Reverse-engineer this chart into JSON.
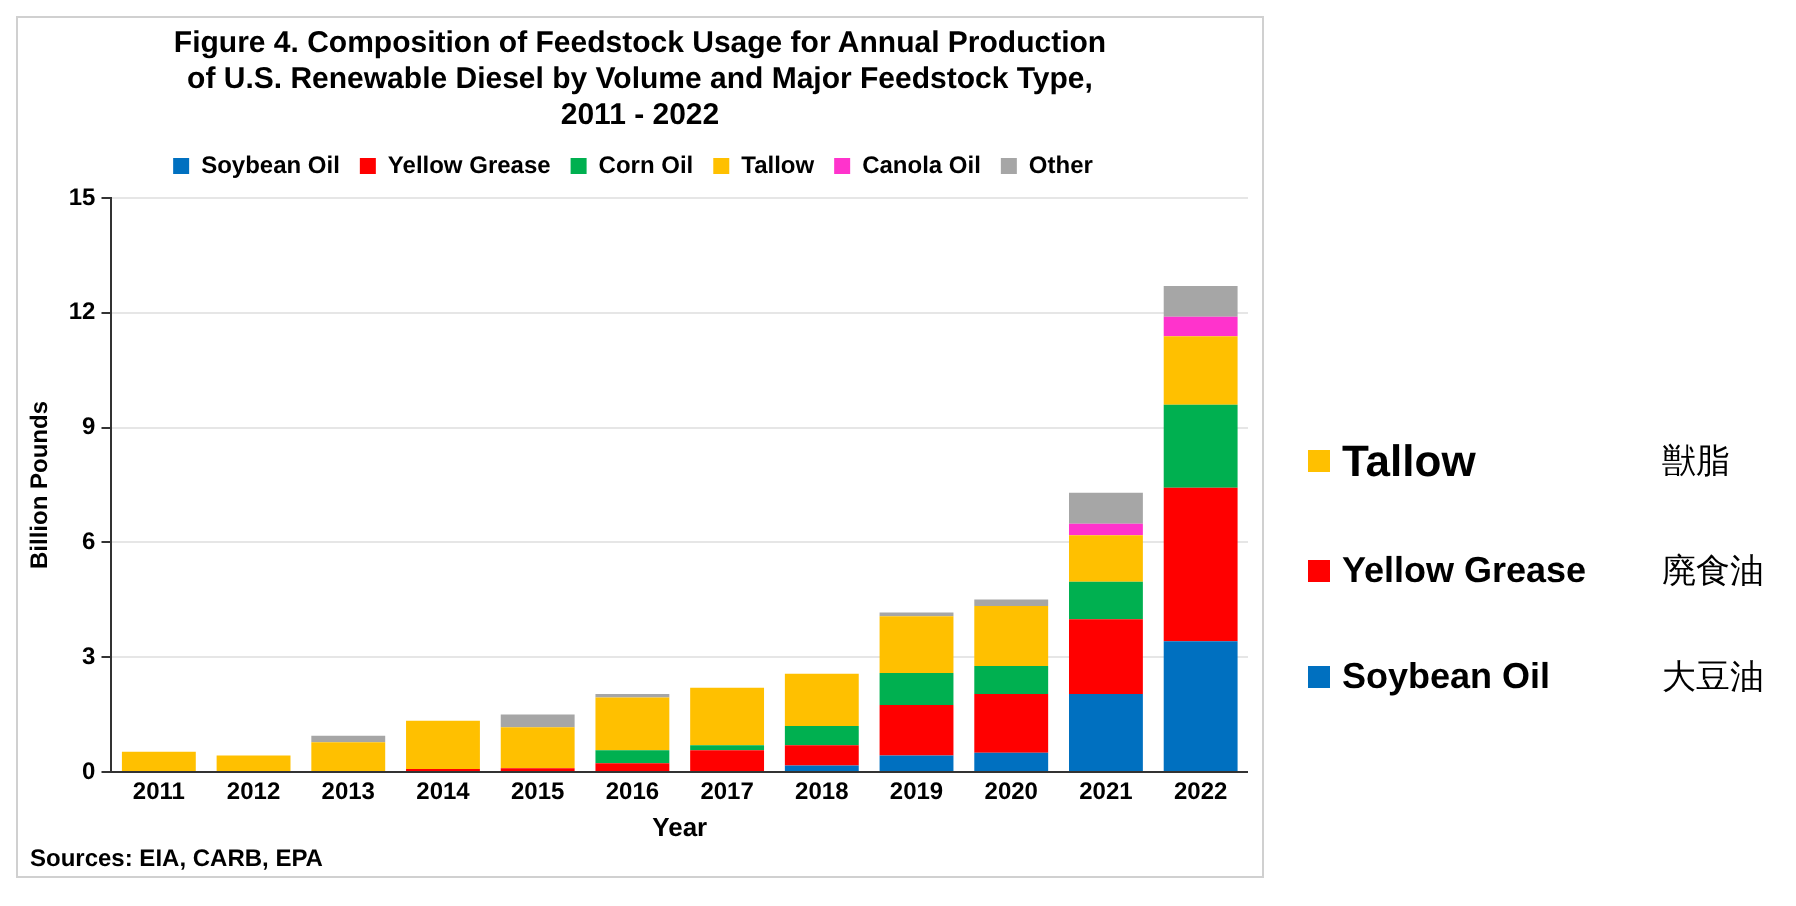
{
  "chart_data": {
    "type": "bar",
    "title": "Figure 4. Composition of Feedstock Usage for Annual Production of U.S. Renewable Diesel by Volume and Major Feedstock Type, 2011 - 2022",
    "xlabel": "Year",
    "ylabel": "Billion Pounds",
    "categories": [
      "2011",
      "2012",
      "2013",
      "2014",
      "2015",
      "2016",
      "2017",
      "2018",
      "2019",
      "2020",
      "2021",
      "2022"
    ],
    "stacked": true,
    "ylim": [
      0,
      15
    ],
    "yticks": [
      0,
      3,
      6,
      9,
      12,
      15
    ],
    "grid": "y",
    "legend": "top",
    "series": [
      {
        "name": "Soybean Oil",
        "color": "#0070c0",
        "values": [
          0,
          0,
          0,
          0,
          0,
          0,
          0,
          0.17,
          0.43,
          0.5,
          2.04,
          3.42
        ]
      },
      {
        "name": "Yellow Grease",
        "color": "#ff0000",
        "values": [
          0,
          0,
          0,
          0.08,
          0.1,
          0.23,
          0.57,
          0.53,
          1.32,
          1.54,
          1.95,
          4.01
        ]
      },
      {
        "name": "Corn Oil",
        "color": "#00b050",
        "values": [
          0,
          0,
          0,
          0,
          0,
          0.34,
          0.13,
          0.5,
          0.84,
          0.73,
          0.98,
          2.17
        ]
      },
      {
        "name": "Tallow",
        "color": "#ffc000",
        "values": [
          0.53,
          0.43,
          0.78,
          1.26,
          1.07,
          1.38,
          1.5,
          1.37,
          1.48,
          1.57,
          1.22,
          1.79
        ]
      },
      {
        "name": "Canola Oil",
        "color": "#ff33cc",
        "values": [
          0,
          0,
          0,
          0,
          0,
          0,
          0,
          0,
          0,
          0,
          0.3,
          0.51
        ]
      },
      {
        "name": "Other",
        "color": "#a6a6a6",
        "values": [
          0,
          0,
          0.17,
          0,
          0.33,
          0.09,
          0,
          0,
          0.1,
          0.17,
          0.81,
          0.8
        ]
      }
    ],
    "annotations": [
      "Sources: EIA, CARB, EPA",
      "Tallow",
      "獣脂",
      "Yellow Grease",
      "廃食油",
      "Soybean Oil",
      "大豆油"
    ]
  }
}
